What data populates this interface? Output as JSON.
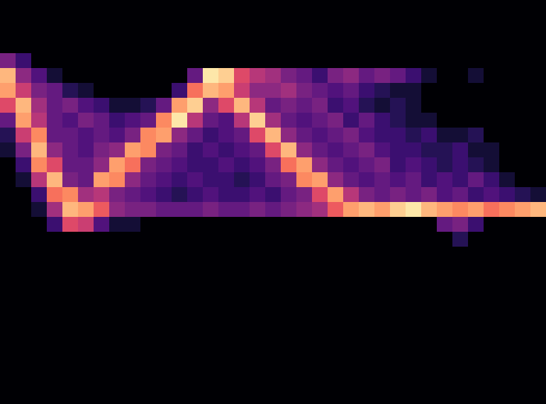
{
  "chart_data": {
    "type": "heatmap",
    "color": "magma",
    "tick_labels": false,
    "zlim": [
      0,
      1
    ],
    "cells": [
      [
        0,
        0,
        0,
        0,
        0,
        0,
        0,
        0,
        0,
        0,
        0,
        0,
        0,
        0,
        0,
        0,
        0,
        0,
        0,
        0,
        0,
        0,
        0,
        0,
        0,
        0,
        0,
        0,
        0,
        0,
        0,
        0,
        0,
        0,
        0
      ],
      [
        0,
        0,
        0,
        0,
        0,
        0,
        0,
        0,
        0,
        0,
        0,
        0,
        0,
        0,
        0,
        0,
        0,
        0,
        0,
        0,
        0,
        0,
        0,
        0,
        0,
        0,
        0,
        0,
        0,
        0,
        0,
        0,
        0,
        0,
        0
      ],
      [
        0,
        0,
        0,
        0,
        0,
        0,
        0,
        0,
        0,
        0,
        0,
        0,
        0,
        0,
        0,
        0,
        0,
        0,
        0,
        0,
        0,
        0,
        0,
        0,
        0,
        0,
        0,
        0,
        0,
        0,
        0,
        0,
        0,
        0,
        0
      ],
      [
        0.35,
        0.2,
        0,
        0,
        0,
        0,
        0,
        0,
        0,
        0,
        0,
        0,
        0,
        0,
        0,
        0,
        0,
        0,
        0,
        0,
        0,
        0,
        0,
        0,
        0,
        0,
        0,
        0,
        0,
        0,
        0,
        0,
        0,
        0,
        0
      ],
      [
        0.85,
        0.4,
        0.25,
        0.1,
        0,
        0,
        0,
        0,
        0,
        0,
        0,
        0,
        0.3,
        0.95,
        0.9,
        0.6,
        0.5,
        0.45,
        0.35,
        0.3,
        0.2,
        0.35,
        0.4,
        0.3,
        0.35,
        0.3,
        0.2,
        0.1,
        0,
        0,
        0.1,
        0,
        0,
        0,
        0
      ],
      [
        0.8,
        0.55,
        0.35,
        0.3,
        0.15,
        0.1,
        0,
        0,
        0,
        0,
        0,
        0.2,
        0.7,
        0.85,
        0.8,
        0.55,
        0.4,
        0.4,
        0.45,
        0.35,
        0.3,
        0.25,
        0.3,
        0.2,
        0.15,
        0.1,
        0.1,
        0,
        0,
        0,
        0,
        0,
        0,
        0,
        0
      ],
      [
        0.6,
        0.85,
        0.45,
        0.3,
        0.35,
        0.25,
        0.2,
        0.1,
        0.1,
        0.15,
        0.3,
        0.8,
        0.9,
        0.4,
        0.6,
        0.85,
        0.5,
        0.3,
        0.35,
        0.3,
        0.35,
        0.2,
        0.25,
        0.15,
        0.1,
        0.15,
        0.1,
        0,
        0,
        0,
        0,
        0,
        0,
        0,
        0
      ],
      [
        0.3,
        0.8,
        0.5,
        0.3,
        0.25,
        0.35,
        0.3,
        0.2,
        0.25,
        0.3,
        0.75,
        0.95,
        0.5,
        0.3,
        0.25,
        0.5,
        0.9,
        0.45,
        0.3,
        0.25,
        0.3,
        0.35,
        0.2,
        0.3,
        0.2,
        0.15,
        0.1,
        0.1,
        0,
        0,
        0,
        0,
        0,
        0,
        0
      ],
      [
        0.15,
        0.55,
        0.75,
        0.3,
        0.3,
        0.25,
        0.3,
        0.25,
        0.35,
        0.75,
        0.8,
        0.4,
        0.3,
        0.2,
        0.25,
        0.3,
        0.6,
        0.85,
        0.4,
        0.3,
        0.25,
        0.3,
        0.35,
        0.25,
        0.2,
        0.2,
        0.15,
        0.2,
        0.1,
        0.1,
        0.15,
        0,
        0,
        0,
        0
      ],
      [
        0.1,
        0.35,
        0.85,
        0.4,
        0.3,
        0.25,
        0.35,
        0.4,
        0.8,
        0.75,
        0.35,
        0.3,
        0.2,
        0.25,
        0.2,
        0.25,
        0.3,
        0.6,
        0.85,
        0.4,
        0.3,
        0.25,
        0.3,
        0.35,
        0.25,
        0.2,
        0.2,
        0.15,
        0.15,
        0.2,
        0.1,
        0.1,
        0,
        0,
        0
      ],
      [
        0,
        0.2,
        0.75,
        0.6,
        0.3,
        0.3,
        0.4,
        0.8,
        0.7,
        0.35,
        0.3,
        0.25,
        0.2,
        0.2,
        0.25,
        0.2,
        0.25,
        0.35,
        0.7,
        0.8,
        0.4,
        0.3,
        0.25,
        0.3,
        0.35,
        0.2,
        0.25,
        0.2,
        0.15,
        0.2,
        0.15,
        0.1,
        0,
        0,
        0
      ],
      [
        0,
        0.1,
        0.5,
        0.85,
        0.35,
        0.3,
        0.8,
        0.75,
        0.4,
        0.3,
        0.25,
        0.2,
        0.25,
        0.2,
        0.2,
        0.15,
        0.2,
        0.3,
        0.35,
        0.75,
        0.8,
        0.4,
        0.3,
        0.25,
        0.3,
        0.25,
        0.3,
        0.2,
        0.25,
        0.2,
        0.3,
        0.2,
        0.1,
        0,
        0
      ],
      [
        0,
        0,
        0.2,
        0.7,
        0.75,
        0.45,
        0.5,
        0.35,
        0.3,
        0.25,
        0.2,
        0.15,
        0.2,
        0.25,
        0.2,
        0.2,
        0.25,
        0.2,
        0.3,
        0.35,
        0.6,
        0.8,
        0.5,
        0.35,
        0.3,
        0.35,
        0.3,
        0.35,
        0.25,
        0.3,
        0.2,
        0.25,
        0.2,
        0.15,
        0.1
      ],
      [
        0,
        0,
        0.1,
        0.45,
        0.85,
        0.8,
        0.65,
        0.4,
        0.35,
        0.35,
        0.3,
        0.3,
        0.3,
        0.35,
        0.3,
        0.3,
        0.35,
        0.3,
        0.35,
        0.4,
        0.45,
        0.65,
        0.8,
        0.85,
        0.8,
        0.9,
        0.95,
        0.85,
        0.8,
        0.75,
        0.8,
        0.7,
        0.75,
        0.8,
        0.85
      ],
      [
        0,
        0,
        0,
        0.2,
        0.6,
        0.55,
        0.25,
        0.1,
        0.1,
        0,
        0,
        0,
        0,
        0,
        0,
        0,
        0,
        0,
        0,
        0,
        0,
        0,
        0,
        0,
        0,
        0,
        0,
        0,
        0.3,
        0.35,
        0.2,
        0,
        0,
        0,
        0
      ],
      [
        0,
        0,
        0,
        0,
        0,
        0,
        0,
        0,
        0,
        0,
        0,
        0,
        0,
        0,
        0,
        0,
        0,
        0,
        0,
        0,
        0,
        0,
        0,
        0,
        0,
        0,
        0,
        0,
        0,
        0.15,
        0,
        0,
        0,
        0,
        0
      ],
      [
        0,
        0,
        0,
        0,
        0,
        0,
        0,
        0,
        0,
        0,
        0,
        0,
        0,
        0,
        0,
        0,
        0,
        0,
        0,
        0,
        0,
        0,
        0,
        0,
        0,
        0,
        0,
        0,
        0,
        0,
        0,
        0,
        0,
        0,
        0
      ],
      [
        0,
        0,
        0,
        0,
        0,
        0,
        0,
        0,
        0,
        0,
        0,
        0,
        0,
        0,
        0,
        0,
        0,
        0,
        0,
        0,
        0,
        0,
        0,
        0,
        0,
        0,
        0,
        0,
        0,
        0,
        0,
        0,
        0,
        0,
        0
      ],
      [
        0,
        0,
        0,
        0,
        0,
        0,
        0,
        0,
        0,
        0,
        0,
        0,
        0,
        0,
        0,
        0,
        0,
        0,
        0,
        0,
        0,
        0,
        0,
        0,
        0,
        0,
        0,
        0,
        0,
        0,
        0,
        0,
        0,
        0,
        0
      ],
      [
        0,
        0,
        0,
        0,
        0,
        0,
        0,
        0,
        0,
        0,
        0,
        0,
        0,
        0,
        0,
        0,
        0,
        0,
        0,
        0,
        0,
        0,
        0,
        0,
        0,
        0,
        0,
        0,
        0,
        0,
        0,
        0,
        0,
        0,
        0
      ],
      [
        0,
        0,
        0,
        0,
        0,
        0,
        0,
        0,
        0,
        0,
        0,
        0,
        0,
        0,
        0,
        0,
        0,
        0,
        0,
        0,
        0,
        0,
        0,
        0,
        0,
        0,
        0,
        0,
        0,
        0,
        0,
        0,
        0,
        0,
        0
      ],
      [
        0,
        0,
        0,
        0,
        0,
        0,
        0,
        0,
        0,
        0,
        0,
        0,
        0,
        0,
        0,
        0,
        0,
        0,
        0,
        0,
        0,
        0,
        0,
        0,
        0,
        0,
        0,
        0,
        0,
        0,
        0,
        0,
        0,
        0,
        0
      ],
      [
        0,
        0,
        0,
        0,
        0,
        0,
        0,
        0,
        0,
        0,
        0,
        0,
        0,
        0,
        0,
        0,
        0,
        0,
        0,
        0,
        0,
        0,
        0,
        0,
        0,
        0,
        0,
        0,
        0,
        0,
        0,
        0,
        0,
        0,
        0
      ],
      [
        0,
        0,
        0,
        0,
        0,
        0,
        0,
        0,
        0,
        0,
        0,
        0,
        0,
        0,
        0,
        0,
        0,
        0,
        0,
        0,
        0,
        0,
        0,
        0,
        0,
        0,
        0,
        0,
        0,
        0,
        0,
        0,
        0,
        0,
        0
      ],
      [
        0,
        0,
        0,
        0,
        0,
        0,
        0,
        0,
        0,
        0,
        0,
        0,
        0,
        0,
        0,
        0,
        0,
        0,
        0,
        0,
        0,
        0,
        0,
        0,
        0,
        0,
        0,
        0,
        0,
        0,
        0,
        0,
        0,
        0,
        0
      ],
      [
        0,
        0,
        0,
        0,
        0,
        0,
        0,
        0,
        0,
        0,
        0,
        0,
        0,
        0,
        0,
        0,
        0,
        0,
        0,
        0,
        0,
        0,
        0,
        0,
        0,
        0,
        0,
        0,
        0,
        0,
        0,
        0,
        0,
        0,
        0
      ]
    ]
  }
}
